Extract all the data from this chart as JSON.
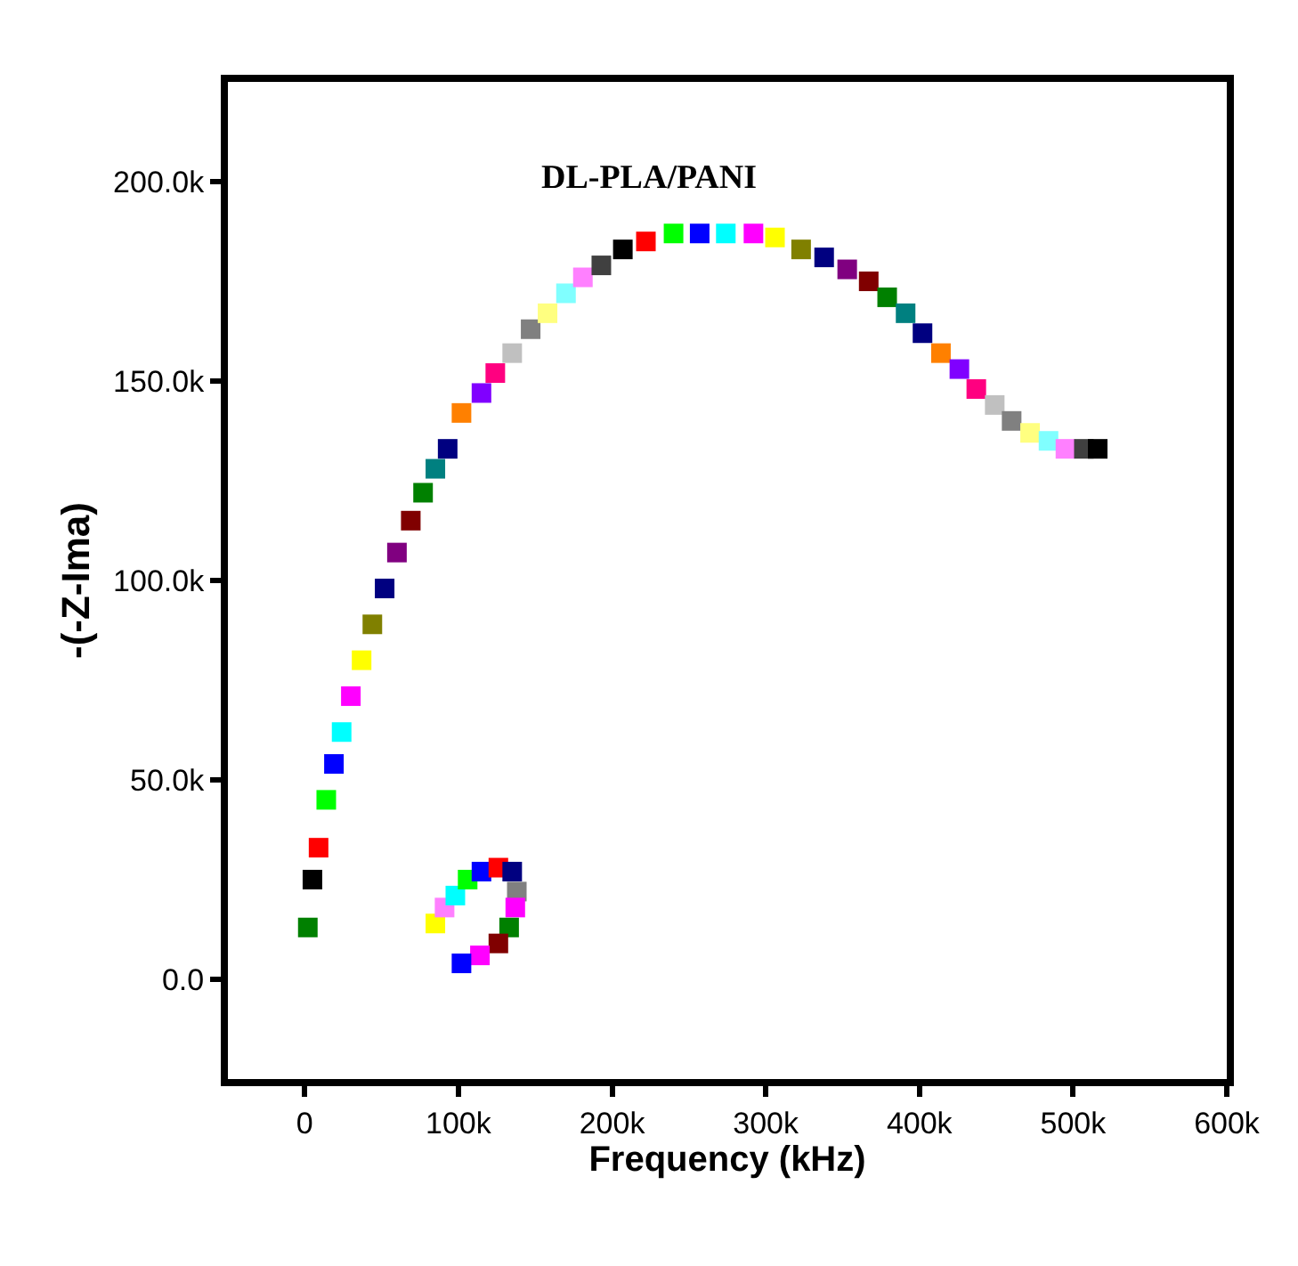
{
  "chart_data": {
    "type": "scatter",
    "title": "DL-PLA/PANI",
    "xlabel": "Frequency (kHz)",
    "ylabel": "-(-Z-Ima)",
    "xlim": [
      -50000,
      600000
    ],
    "xticks": [
      {
        "value": 0,
        "label": "0"
      },
      {
        "value": 100000,
        "label": "100k"
      },
      {
        "value": 200000,
        "label": "200k"
      },
      {
        "value": 300000,
        "label": "300k"
      },
      {
        "value": 400000,
        "label": "400k"
      },
      {
        "value": 500000,
        "label": "500k"
      },
      {
        "value": 600000,
        "label": "600k"
      }
    ],
    "ylim": [
      -25000,
      225000
    ],
    "yticks": [
      {
        "value": 0,
        "label": "0.0"
      },
      {
        "value": 50000,
        "label": "50.0k"
      },
      {
        "value": 100000,
        "label": "100.0k"
      },
      {
        "value": 150000,
        "label": "150.0k"
      },
      {
        "value": 200000,
        "label": "200.0k"
      }
    ],
    "marker": "square",
    "series": [
      {
        "x": [
          2000,
          5000,
          9000,
          14000,
          19000,
          24000,
          30000,
          37000,
          44000,
          52000,
          60000,
          69000,
          77000,
          85000,
          93000,
          102000,
          115000,
          124000,
          135000,
          147000,
          158000,
          170000,
          181000,
          193000,
          207000,
          222000,
          240000,
          257000,
          274000,
          292000,
          306000,
          323000,
          338000,
          353000,
          367000,
          379000,
          391000,
          402000,
          414000,
          426000,
          437000,
          449000,
          460000,
          472000,
          484000,
          495000,
          507000,
          516000,
          85000,
          91000,
          98000,
          106000,
          115000,
          126000,
          135000,
          138000,
          137000,
          133000,
          126000,
          114000,
          102000
        ],
        "values": [
          13000,
          25000,
          33000,
          45000,
          54000,
          62000,
          71000,
          80000,
          89000,
          98000,
          107000,
          115000,
          122000,
          128000,
          133000,
          142000,
          147000,
          152000,
          157000,
          163000,
          167000,
          172000,
          176000,
          179000,
          183000,
          185000,
          187000,
          187000,
          187000,
          187000,
          186000,
          183000,
          181000,
          178000,
          175000,
          171000,
          167000,
          162000,
          157000,
          153000,
          148000,
          144000,
          140000,
          137000,
          135000,
          133000,
          133000,
          133000,
          14000,
          18000,
          21000,
          25000,
          27000,
          28000,
          27000,
          22000,
          18000,
          13000,
          9000,
          6000,
          4000
        ],
        "colors": [
          "#008000",
          "#000000",
          "#ff0000",
          "#00ff00",
          "#0000ff",
          "#00ffff",
          "#ff00ff",
          "#ffff00",
          "#808000",
          "#000080",
          "#800080",
          "#800000",
          "#008000",
          "#008080",
          "#000080",
          "#ff8000",
          "#8000ff",
          "#ff0080",
          "#c0c0c0",
          "#808080",
          "#ffff80",
          "#80ffff",
          "#ff80ff",
          "#404040",
          "#000000",
          "#ff0000",
          "#00ff00",
          "#0000ff",
          "#00ffff",
          "#ff00ff",
          "#ffff00",
          "#808000",
          "#000080",
          "#800080",
          "#800000",
          "#008000",
          "#008080",
          "#000080",
          "#ff8000",
          "#8000ff",
          "#ff0080",
          "#c0c0c0",
          "#808080",
          "#ffff80",
          "#80ffff",
          "#ff80ff",
          "#404040",
          "#000000",
          "#ffff00",
          "#ff80ff",
          "#00ffff",
          "#00ff00",
          "#0000ff",
          "#ff0000",
          "#000080",
          "#808080",
          "#ff00ff",
          "#008000",
          "#800000",
          "#ff00ff",
          "#0000ff"
        ]
      }
    ]
  }
}
